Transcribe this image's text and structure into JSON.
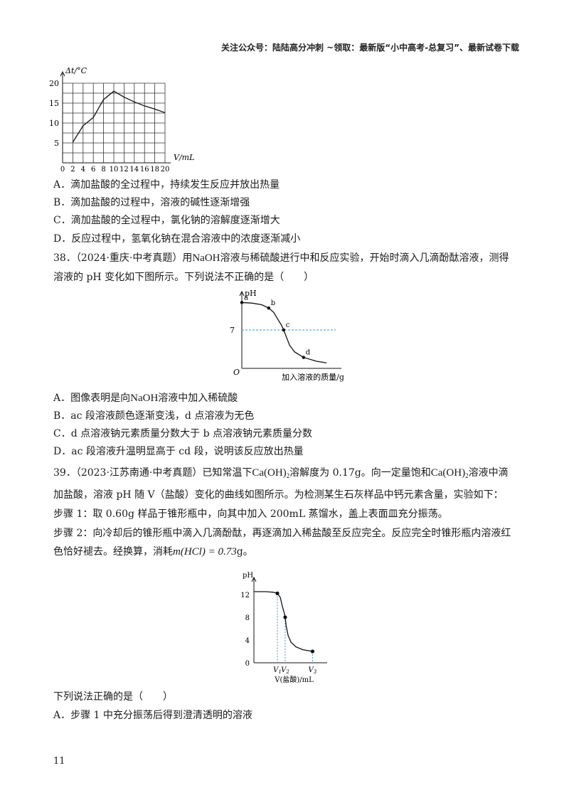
{
  "header": {
    "text": "关注公众号：陆陆高分冲刺  ~领取：最新版“小中高考-总复习”、最新试卷下载"
  },
  "q37": {
    "options": [
      "A．滴加盐酸的全过程中，持续发生反应并放出热量",
      "B．滴加盐酸的过程中，溶液的碱性逐渐增强",
      "C．滴加盐酸的全过程中，氯化钠的溶解度逐渐增大",
      "D．反应过程中，氢氧化钠在混合溶液中的浓度逐渐减小"
    ]
  },
  "q38": {
    "line1_pre": "38．（2024·重庆·中考真题）用",
    "naoh": "NaOH",
    "line1_post": "溶液与稀硫酸进行中和反应实验，开始时滴入几滴酚酞溶液，测得",
    "line2": "溶液的 pH 变化如下图所示。下列说法不正确的是（　　）",
    "optA_pre": "A．图像表明是向",
    "optA_post": "溶液中加入稀硫酸",
    "options": [
      "B．ac 段溶液颜色逐渐变浅，d 点溶液为无色",
      "C．d 点溶液钠元素质量分数大于 b 点溶液钠元素质量分数",
      "D．ac 段溶液升温明显高于 cd 段，说明该反应放出热量"
    ]
  },
  "q39": {
    "line1_pre": "39．（2023·江苏南通·中考真题）已知常温下",
    "line1_mid": "溶解度为 0.17g。向一定量饱和",
    "line1_post": "溶液中滴",
    "caoh_main": "Ca(OH)",
    "caoh_sub": "2",
    "line2": "加盐酸，溶液 pH 随 V（盐酸）变化的曲线如图所示。为检测某生石灰样品中钙元素含量，实验如下：",
    "line3": "步骤 1：取 0.60g 样品于锥形瓶中，向其中加入 200mL 蒸馏水，盖上表面皿充分振荡。",
    "line4": "步骤 2：向冷却后的锥形瓶中滴入几滴酚酞，再逐滴加入稀盐酸至反应完全。反应完全时锥形瓶内溶液红",
    "line5_pre": "色恰好褪去。经换算，消耗",
    "m_hcl": "m(HCl) = 0.73",
    "line5_post": "g。",
    "line6": "下列说法正确的是（　　）",
    "optA": "A．步骤 1 中充分振荡后得到澄清透明的溶液"
  },
  "page_number": "11",
  "chart_data": [
    {
      "type": "line",
      "title": "",
      "ylabel": "Δt/°C",
      "xlabel": "V/mL",
      "x_ticks": [
        "0",
        "2",
        "4",
        "6",
        "8",
        "10",
        "12",
        "14",
        "16",
        "18",
        "20"
      ],
      "y_ticks": [
        "5",
        "10",
        "15",
        "20"
      ],
      "xlim": [
        0,
        20
      ],
      "ylim": [
        0,
        20
      ],
      "grid": true,
      "x": [
        2,
        4,
        6,
        8,
        10,
        12,
        14,
        16,
        18,
        20
      ],
      "y": [
        5.2,
        9.3,
        11.4,
        15.9,
        18.0,
        16.5,
        15.3,
        14.3,
        13.5,
        12.6
      ]
    },
    {
      "type": "line",
      "title": "",
      "ylabel": "pH",
      "xlabel": "加入溶液的质量/g",
      "origin_label": "O",
      "y_ticks": [
        "7"
      ],
      "reference_line": {
        "y": 7,
        "color": "#2a9fd6"
      },
      "points": [
        {
          "label": "a",
          "x": 0.0,
          "y": 12.0
        },
        {
          "label": "b",
          "x": 0.27,
          "y": 11.0
        },
        {
          "label": "c",
          "x": 0.42,
          "y": 7.0
        },
        {
          "label": "d",
          "x": 0.62,
          "y": 2.0
        }
      ],
      "xlim": [
        0,
        1
      ],
      "ylim": [
        0,
        14
      ],
      "curve": [
        [
          0,
          12
        ],
        [
          0.1,
          11.9
        ],
        [
          0.2,
          11.6
        ],
        [
          0.27,
          11.0
        ],
        [
          0.32,
          10.2
        ],
        [
          0.36,
          9.0
        ],
        [
          0.4,
          7.8
        ],
        [
          0.42,
          7.0
        ],
        [
          0.45,
          5.6
        ],
        [
          0.48,
          4.2
        ],
        [
          0.53,
          3.0
        ],
        [
          0.62,
          2.0
        ],
        [
          0.75,
          1.3
        ],
        [
          0.85,
          1.0
        ]
      ]
    },
    {
      "type": "line",
      "title": "",
      "ylabel": "pH",
      "xlabel": "V(盐酸)/mL",
      "y_ticks": [
        "0",
        "4",
        "8",
        "12"
      ],
      "x_ticks": [
        "V1",
        "V2",
        "V3"
      ],
      "x_tick_values": [
        0.24,
        0.32,
        0.6
      ],
      "xlim": [
        0,
        0.75
      ],
      "ylim": [
        0,
        14
      ],
      "points": [
        {
          "x": 0.24,
          "y": 12.2
        },
        {
          "x": 0.32,
          "y": 8.0
        },
        {
          "x": 0.6,
          "y": 2.0
        }
      ],
      "curve": [
        [
          0,
          12.5
        ],
        [
          0.12,
          12.5
        ],
        [
          0.2,
          12.4
        ],
        [
          0.24,
          12.2
        ],
        [
          0.27,
          11.5
        ],
        [
          0.29,
          10.0
        ],
        [
          0.31,
          8.8
        ],
        [
          0.32,
          8.0
        ],
        [
          0.33,
          6.5
        ],
        [
          0.35,
          4.8
        ],
        [
          0.38,
          3.6
        ],
        [
          0.43,
          2.8
        ],
        [
          0.5,
          2.3
        ],
        [
          0.6,
          2.0
        ]
      ]
    }
  ]
}
